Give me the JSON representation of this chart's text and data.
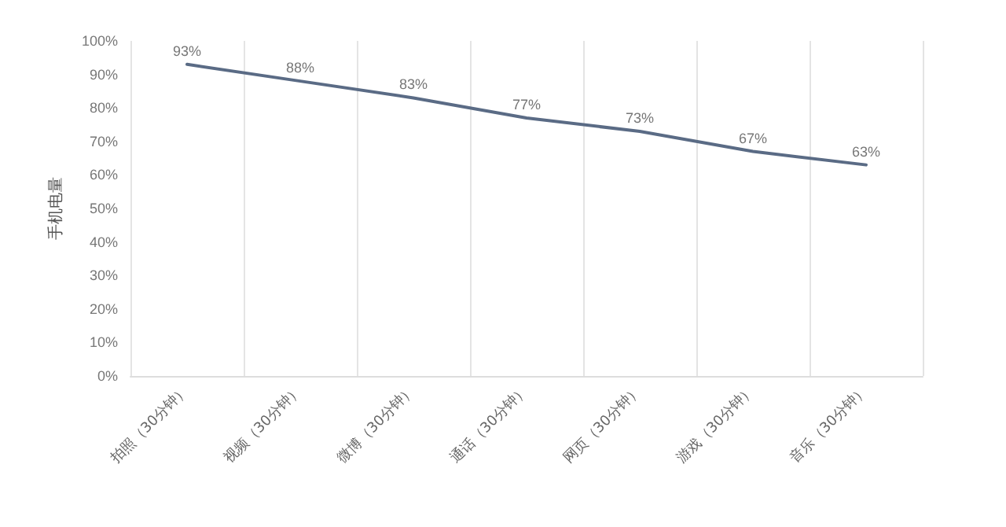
{
  "chart_data": {
    "type": "line",
    "ylabel": "手机电量",
    "categories": [
      "拍照（30分钟）",
      "视频（30分钟）",
      "微博（30分钟）",
      "通话（30分钟）",
      "网页（30分钟）",
      "游戏（30分钟）",
      "音乐（30分钟）"
    ],
    "series": [
      {
        "color": "#5a6b85",
        "values": [
          93,
          88,
          83,
          77,
          73,
          67,
          63
        ],
        "value_labels": [
          "93%",
          "88%",
          "83%",
          "77%",
          "73%",
          "67%",
          "63%"
        ]
      }
    ],
    "ylim": [
      0,
      100
    ],
    "yticks": [
      {
        "value": 0,
        "label": "0%"
      },
      {
        "value": 10,
        "label": "10%"
      },
      {
        "value": 20,
        "label": "20%"
      },
      {
        "value": 30,
        "label": "30%"
      },
      {
        "value": 40,
        "label": "40%"
      },
      {
        "value": 50,
        "label": "50%"
      },
      {
        "value": 60,
        "label": "60%"
      },
      {
        "value": 70,
        "label": "70%"
      },
      {
        "value": 80,
        "label": "80%"
      },
      {
        "value": 90,
        "label": "90%"
      },
      {
        "value": 100,
        "label": "100%"
      }
    ],
    "grid": "x",
    "marker": "none",
    "line_style": "solid"
  }
}
